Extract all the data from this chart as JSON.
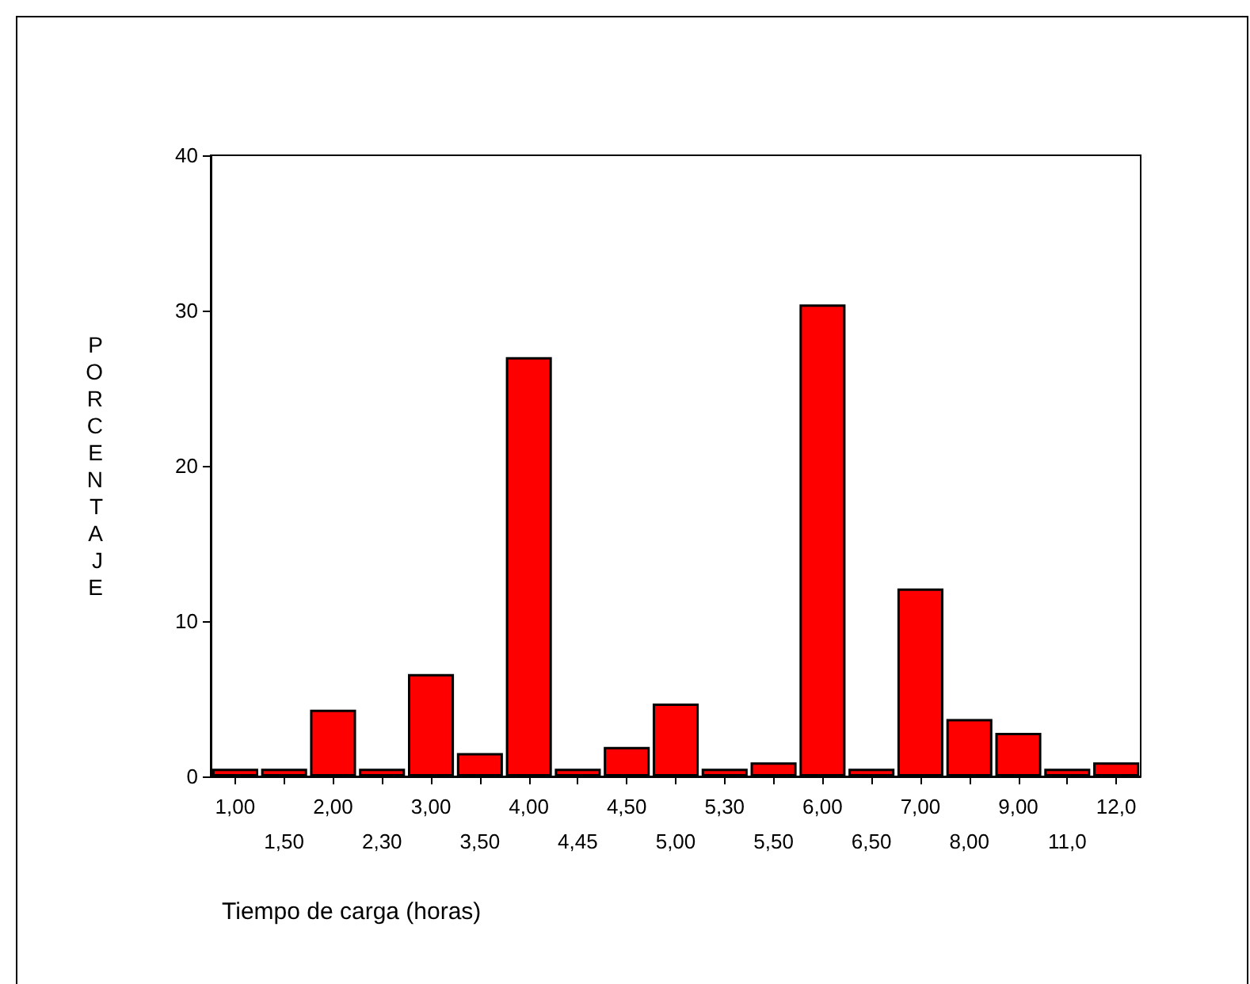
{
  "chart_data": {
    "type": "bar",
    "xlabel": "Tiempo de carga (horas)",
    "ylabel": "PORCENTAJE",
    "categories": [
      "1,00",
      "1,50",
      "2,00",
      "2,30",
      "3,00",
      "3,50",
      "4,00",
      "4,45",
      "4,50",
      "5,00",
      "5,30",
      "5,50",
      "6,00",
      "6,50",
      "7,00",
      "8,00",
      "9,00",
      "11,0",
      "12,0"
    ],
    "values": [
      0.5,
      0.5,
      4.3,
      0.5,
      6.6,
      1.5,
      27.0,
      0.5,
      1.9,
      4.7,
      0.5,
      0.9,
      30.4,
      0.5,
      12.1,
      3.7,
      2.8,
      0.5,
      0.9
    ],
    "color": "#ff0000",
    "ylim": [
      0,
      40
    ],
    "yticks": [
      0,
      10,
      20,
      30,
      40
    ],
    "grid": false
  }
}
